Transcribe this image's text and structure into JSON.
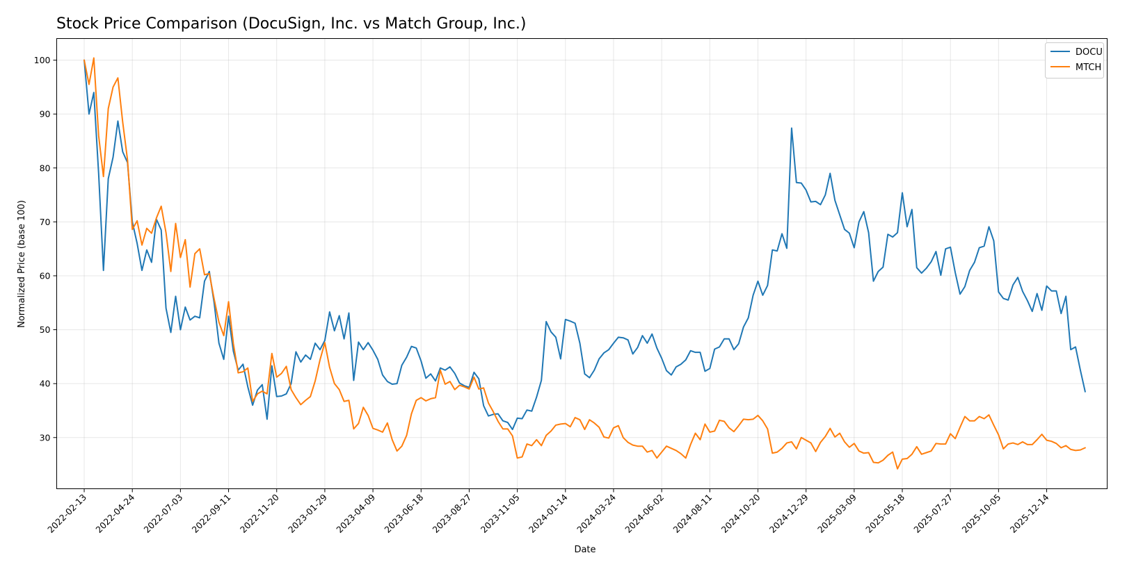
{
  "chart_data": {
    "type": "line",
    "title": "Stock Price Comparison (DocuSign, Inc. vs Match Group, Inc.)",
    "xlabel": "Date",
    "ylabel": "Normalized Price (base 100)",
    "ylim": [
      20.5,
      104.0
    ],
    "yticks": [
      30,
      40,
      50,
      60,
      70,
      80,
      90,
      100
    ],
    "xlim": [
      "2022-01-04",
      "2026-03-12"
    ],
    "xticks": [
      "2022-02-13",
      "2022-04-24",
      "2022-07-03",
      "2022-09-11",
      "2022-11-20",
      "2023-01-29",
      "2023-04-09",
      "2023-06-18",
      "2023-08-27",
      "2023-11-05",
      "2024-01-14",
      "2024-03-24",
      "2024-06-02",
      "2024-08-11",
      "2024-10-20",
      "2024-12-29",
      "2025-03-09",
      "2025-05-18",
      "2025-07-27",
      "2025-10-05",
      "2025-12-14"
    ],
    "grid": true,
    "legend_position": "top-right",
    "x_start": "2022-02-13",
    "x_step_days": 7,
    "series": [
      {
        "name": "DOCU",
        "color": "#1f77b4",
        "values": [
          100,
          90,
          94,
          79,
          61,
          78,
          82,
          88.7,
          83,
          81,
          70,
          66,
          61,
          64.8,
          62.5,
          70.5,
          68.5,
          54,
          49.5,
          56.2,
          50,
          54.2,
          51.8,
          52.5,
          52.2,
          59,
          60.8,
          55,
          47.5,
          44.5,
          52.5,
          46,
          42.5,
          43.6,
          39.4,
          36,
          38.8,
          39.8,
          33.4,
          43.3,
          37.6,
          37.7,
          38.1,
          40,
          45.9,
          44,
          45.3,
          44.5,
          47.5,
          46.3,
          48,
          53.3,
          49.8,
          52.6,
          48.3,
          53.1,
          40.6,
          47.7,
          46.3,
          47.6,
          46.2,
          44.5,
          41.6,
          40.4,
          39.9,
          40,
          43.4,
          44.9,
          46.9,
          46.6,
          44.2,
          41,
          41.8,
          40.5,
          42.9,
          42.5,
          43.1,
          41.9,
          40.1,
          39.6,
          39.3,
          42.1,
          40.9,
          35.9,
          34,
          34.3,
          34.4,
          33.1,
          32.8,
          31.5,
          33.6,
          33.5,
          35.1,
          34.9,
          37.5,
          40.6,
          51.5,
          49.6,
          48.6,
          44.6,
          51.9,
          51.6,
          51.2,
          47.5,
          41.8,
          41.1,
          42.5,
          44.6,
          45.7,
          46.3,
          47.5,
          48.6,
          48.5,
          48.1,
          45.5,
          46.7,
          48.9,
          47.5,
          49.2,
          46.6,
          44.7,
          42.4,
          41.6,
          43.1,
          43.6,
          44.4,
          46.1,
          45.8,
          45.8,
          42.3,
          42.8,
          46.4,
          46.8,
          48.3,
          48.3,
          46.3,
          47.4,
          50.5,
          52.2,
          56.4,
          59,
          56.4,
          58.2,
          64.8,
          64.6,
          67.8,
          65.1,
          87.4,
          77.3,
          77.2,
          75.9,
          73.7,
          73.8,
          73.2,
          75,
          79,
          74,
          71.3,
          68.6,
          67.9,
          65.2,
          70,
          71.9,
          68,
          59,
          60.8,
          61.6,
          67.7,
          67.2,
          68,
          75.4,
          69.1,
          72.3,
          61.5,
          60.5,
          61.4,
          62.6,
          64.5,
          60.1,
          65,
          65.3,
          60.6,
          56.6,
          58,
          61,
          62.5,
          65.2,
          65.5,
          69.1,
          66.5,
          57,
          55.8,
          55.5,
          58.3,
          59.7,
          57.1,
          55.4,
          53.4,
          56.7,
          53.6,
          58.1,
          57.2,
          57.2,
          53,
          56.2,
          46.3,
          46.8,
          42.5,
          38.5
        ]
      },
      {
        "name": "MTCH",
        "color": "#ff7f0e",
        "values": [
          100,
          95.5,
          100.4,
          86,
          78.4,
          91,
          95,
          96.7,
          88.5,
          81.5,
          68.6,
          70.2,
          65.7,
          68.8,
          67.9,
          70.7,
          72.9,
          68,
          60.8,
          69.7,
          63.4,
          66.7,
          57.9,
          64.1,
          65,
          60.2,
          60.4,
          55.7,
          51.4,
          48.9,
          55.2,
          47.4,
          42,
          42.2,
          42.9,
          36.7,
          38.1,
          38.6,
          38.1,
          45.6,
          41.2,
          41.9,
          43.2,
          38.9,
          37.4,
          36.1,
          36.9,
          37.6,
          40.5,
          44.4,
          47.6,
          43,
          40,
          38.9,
          36.7,
          36.9,
          31.6,
          32.6,
          35.6,
          34.1,
          31.7,
          31.4,
          31,
          32.7,
          29.6,
          27.5,
          28.4,
          30.4,
          34.4,
          36.9,
          37.4,
          36.8,
          37.2,
          37.4,
          42.5,
          39.9,
          40.4,
          38.9,
          39.7,
          39.4,
          39,
          41.2,
          39,
          39.2,
          36.4,
          34.8,
          33,
          31.6,
          31.6,
          30.3,
          26.2,
          26.4,
          28.8,
          28.5,
          29.6,
          28.5,
          30.4,
          31.2,
          32.3,
          32.5,
          32.6,
          32,
          33.7,
          33.3,
          31.5,
          33.3,
          32.7,
          31.9,
          30.1,
          29.9,
          31.8,
          32.2,
          30,
          29.1,
          28.6,
          28.4,
          28.4,
          27.3,
          27.6,
          26.2,
          27.3,
          28.4,
          28,
          27.6,
          27,
          26.2,
          28.7,
          30.8,
          29.6,
          32.5,
          31,
          31.2,
          33.2,
          33,
          31.8,
          31.1,
          32.2,
          33.4,
          33.3,
          33.4,
          34.1,
          33.1,
          31.6,
          27.1,
          27.3,
          28,
          29,
          29.2,
          27.9,
          30,
          29.5,
          29,
          27.4,
          29.1,
          30.2,
          31.7,
          30.1,
          30.8,
          29.2,
          28.2,
          28.9,
          27.5,
          27.1,
          27.2,
          25.4,
          25.3,
          25.8,
          26.7,
          27.3,
          24.2,
          26,
          26.1,
          26.9,
          28.3,
          26.9,
          27.2,
          27.5,
          28.9,
          28.8,
          28.8,
          30.7,
          29.8,
          31.9,
          33.9,
          33.1,
          33.1,
          33.9,
          33.5,
          34.2,
          32.3,
          30.5,
          27.9,
          28.8,
          29,
          28.7,
          29.2,
          28.7,
          28.7,
          29.6,
          30.6,
          29.5,
          29.3,
          28.9,
          28.1,
          28.5,
          27.8,
          27.6,
          27.7,
          28.1
        ]
      }
    ]
  }
}
